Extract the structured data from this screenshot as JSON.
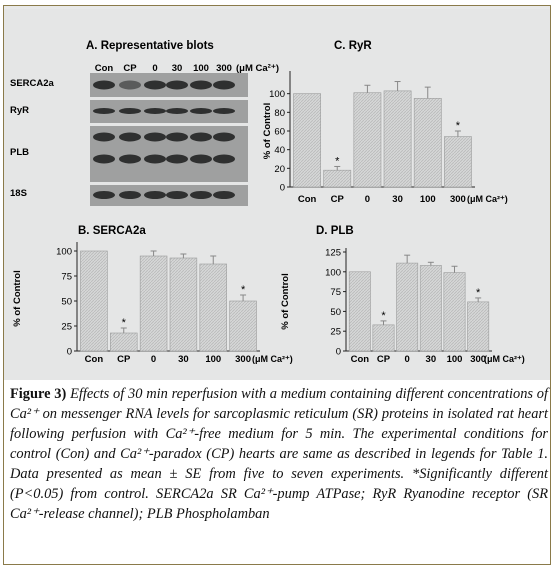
{
  "blots": {
    "title": "A.  Representative blots",
    "lanes": [
      "Con",
      "CP",
      "0",
      "30",
      "100",
      "300"
    ],
    "unit": "(μM Ca²⁺)",
    "rows": [
      "SERCA2a",
      "RyR",
      "PLB",
      "18S"
    ]
  },
  "chart_data": [
    {
      "type": "bar",
      "panel": "ryr",
      "title": "C.  RyR",
      "ylabel": "% of Control",
      "categories": [
        "Con",
        "CP",
        "0",
        "30",
        "100",
        "300"
      ],
      "unit": "(μM Ca²⁺)",
      "values": [
        100,
        18,
        101,
        103,
        95,
        54
      ],
      "errors": [
        0,
        4,
        8,
        10,
        12,
        6
      ],
      "significant": [
        false,
        true,
        false,
        false,
        false,
        true
      ],
      "star": "*",
      "ylim": [
        0,
        120
      ],
      "yticks": [
        "0",
        "20",
        "40",
        "60",
        "80",
        "100"
      ],
      "ytick_values": [
        0,
        20,
        40,
        60,
        80,
        100
      ],
      "legend": "none"
    },
    {
      "type": "bar",
      "panel": "serca2a",
      "title": "B.  SERCA2a",
      "ylabel": "% of Control",
      "categories": [
        "Con",
        "CP",
        "0",
        "30",
        "100",
        "300"
      ],
      "unit": "(μM Ca²⁺)",
      "values": [
        100,
        18,
        95,
        93,
        87,
        50
      ],
      "errors": [
        0,
        5,
        5,
        4,
        8,
        6
      ],
      "significant": [
        false,
        true,
        false,
        false,
        false,
        true
      ],
      "star": "*",
      "ylim": [
        0,
        105
      ],
      "yticks": [
        "0",
        "25",
        "50",
        "75",
        "100"
      ],
      "ytick_values": [
        0,
        25,
        50,
        75,
        100
      ],
      "legend": "none"
    },
    {
      "type": "bar",
      "panel": "plb",
      "title": "D.  PLB",
      "ylabel": "% of Control",
      "categories": [
        "Con",
        "CP",
        "0",
        "30",
        "100",
        "300"
      ],
      "unit": "(μM Ca²⁺)",
      "values": [
        100,
        33,
        111,
        108,
        99,
        62
      ],
      "errors": [
        0,
        5,
        10,
        4,
        8,
        5
      ],
      "significant": [
        false,
        true,
        false,
        false,
        false,
        true
      ],
      "star": "*",
      "ylim": [
        0,
        125
      ],
      "yticks": [
        "0",
        "25",
        "50",
        "75",
        "100",
        "125"
      ],
      "ytick_values": [
        0,
        25,
        50,
        75,
        100,
        125
      ],
      "legend": "none"
    }
  ],
  "caption": {
    "label": "Figure 3)",
    "text": "Effects of 30 min reperfusion with a medium containing different concentrations of Ca²⁺ on messenger RNA levels for sarcoplasmic reticulum (SR) proteins in isolated rat heart following perfusion with Ca²⁺-free medium for 5 min. The experimental conditions for control (Con) and Ca²⁺-paradox (CP) hearts are same as described in legends for Table 1. Data presented as mean ± SE from five to seven experiments. *Significantly different (P<0.05) from control. SERCA2a SR Ca²⁺-pump ATPase; RyR Ryanodine receptor (SR Ca²⁺-release channel); PLB Phospholamban"
  }
}
